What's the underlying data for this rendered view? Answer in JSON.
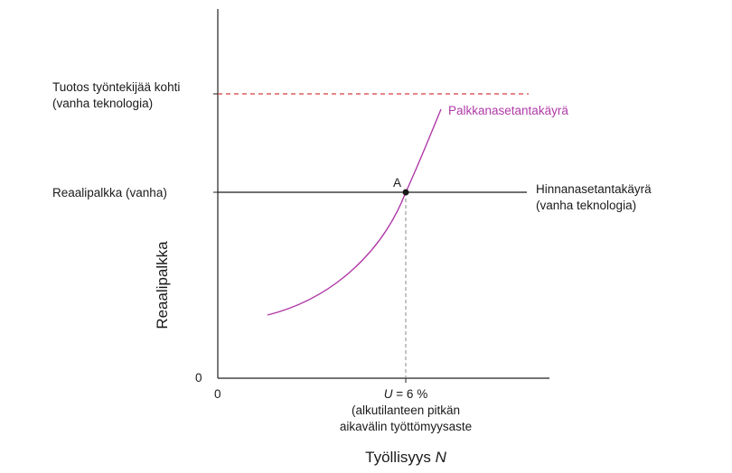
{
  "colors": {
    "axis": "#222222",
    "price_setting": "#1a1a1a",
    "wage_curve": "#b03aa8",
    "output_line": "#d63a3a",
    "guide": "#888888",
    "text": "#1a1a1a"
  },
  "axes": {
    "y_title": "Reaalipalkka",
    "x_title_main": "Työllisyys ",
    "x_title_var": "N",
    "y_zero": "0",
    "x_zero": "0"
  },
  "labels": {
    "output_line": [
      "Tuotos työntekijää kohti",
      "(vanha teknologia)"
    ],
    "real_wage": "Reaalipalkka (vanha)",
    "wage_curve": "Palkkanasetantakäyrä",
    "price_curve": [
      "Hinnanasetantakäyrä",
      "(vanha teknologia)"
    ],
    "point": "A",
    "unemployment_var": "U",
    "unemployment_value": " = 6 %",
    "unemployment_note": [
      "(alkutilanteen pitkän",
      "aikavälin työttömyysaste"
    ]
  }
}
